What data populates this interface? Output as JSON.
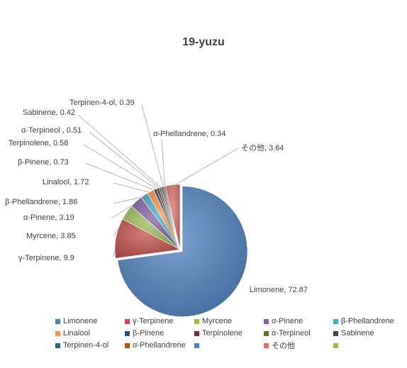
{
  "chart_data": {
    "type": "pie",
    "title": "19-yuzu",
    "style": "3d-shaded",
    "exploded_slice": "Limonene",
    "slices": [
      {
        "label": "Limonene",
        "value": 72.87,
        "color": "#4F81BD"
      },
      {
        "label": "γ-Terpinene",
        "value": 9.9,
        "color": "#C0504D"
      },
      {
        "label": "Myrcene",
        "value": 3.85,
        "color": "#9BBB59"
      },
      {
        "label": "α-Pinene",
        "value": 3.19,
        "color": "#8064A2"
      },
      {
        "label": "β-Phellandrene",
        "value": 1.86,
        "color": "#4BACC6"
      },
      {
        "label": "Linalool",
        "value": 1.72,
        "color": "#F79646"
      },
      {
        "label": "β-Pinene",
        "value": 0.73,
        "color": "#2C4D75"
      },
      {
        "label": "Terpinolene",
        "value": 0.58,
        "color": "#772C2A"
      },
      {
        "label": "α-Terpineol",
        "value": 0.51,
        "color": "#5F7530"
      },
      {
        "label": "Sabinene",
        "value": 0.42,
        "color": "#4D3B62"
      },
      {
        "label": "Terpinen-4-ol",
        "value": 0.39,
        "color": "#276A7C"
      },
      {
        "label": "α-Phellandrene",
        "value": 0.34,
        "color": "#B65708"
      },
      {
        "label": "その他",
        "value": 3.64,
        "color": "#D9726E"
      }
    ],
    "data_labels": [
      "Limonene, 72.87",
      "γ-Terpinene, 9.9",
      "Myrcene, 3.85",
      "α-Pinene, 3.19",
      "β-Phellandrene, 1.86",
      "Linalool, 1.72",
      "β-Pinene, 0.73",
      "Terpinolene, 0.58",
      "α-Terpineol , 0.51",
      "Sabinene, 0.42",
      "Terpinen-4-ol, 0.39",
      "α-Phellandrene, 0.34",
      "その他, 3.64"
    ],
    "legend_position": "bottom",
    "legend": [
      {
        "label": "Limonene",
        "color": "#4F81BD"
      },
      {
        "label": "γ-Terpinene",
        "color": "#C0504D"
      },
      {
        "label": "Myrcene",
        "color": "#9BBB59"
      },
      {
        "label": "α-Pinene",
        "color": "#8064A2"
      },
      {
        "label": "β-Phellandrene",
        "color": "#4BACC6"
      },
      {
        "label": "Linalool",
        "color": "#F79646"
      },
      {
        "label": "β-Pinene",
        "color": "#2C4D75"
      },
      {
        "label": "Terpinolene",
        "color": "#772C2A"
      },
      {
        "label": "α-Terpineol",
        "color": "#5F7530"
      },
      {
        "label": "Sabinene",
        "color": "#4D3B62"
      },
      {
        "label": "Terpinen-4-ol",
        "color": "#276A7C"
      },
      {
        "label": "α-Phellandrene",
        "color": "#B65708"
      },
      {
        "label": "",
        "color": "#4F81BD"
      },
      {
        "label": "その他",
        "color": "#D9726E"
      },
      {
        "label": "",
        "color": "#9BBB59"
      }
    ]
  }
}
